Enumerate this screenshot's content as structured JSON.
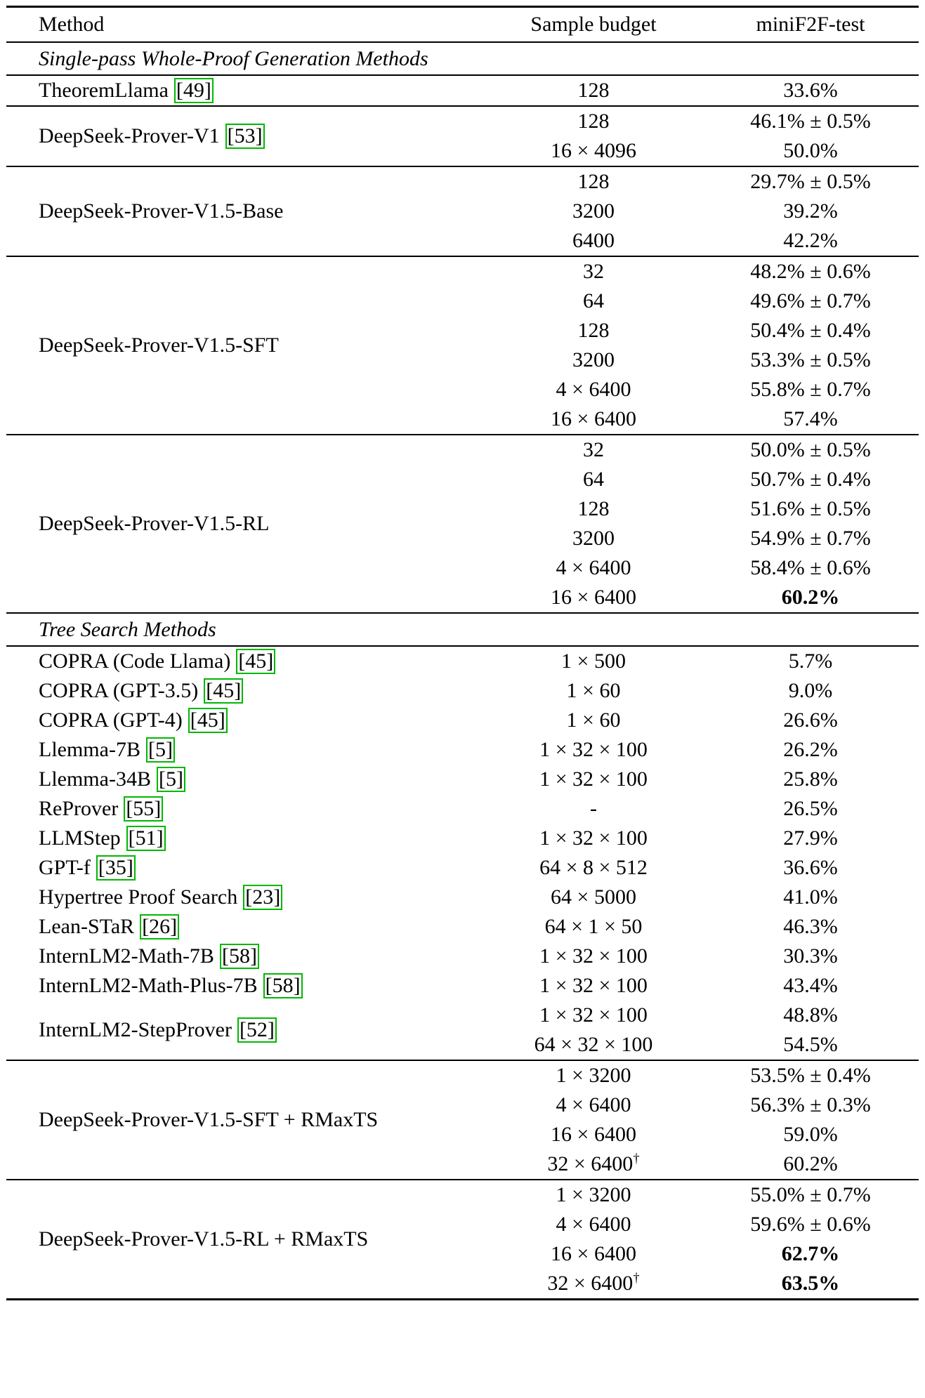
{
  "colors": {
    "citation_box": "#00b800",
    "rule": "#000000",
    "text": "#000000"
  },
  "table": {
    "headers": [
      {
        "label": "Method"
      },
      {
        "label": "Sample budget"
      },
      {
        "label": "miniF2F-test"
      }
    ],
    "sections": [
      {
        "title": "Single-pass Whole-Proof Generation Methods",
        "blocks": [
          {
            "groups": [
              {
                "method": "TheoremLlama",
                "citation": "[49]",
                "rows": [
                  {
                    "budget": "128",
                    "result": "33.6%"
                  }
                ]
              }
            ]
          },
          {
            "groups": [
              {
                "method": "DeepSeek-Prover-V1",
                "citation": "[53]",
                "rows": [
                  {
                    "budget": "128",
                    "result": "46.1% ± 0.5%"
                  },
                  {
                    "budget": "16 × 4096",
                    "result": "50.0%"
                  }
                ]
              }
            ]
          },
          {
            "groups": [
              {
                "method": "DeepSeek-Prover-V1.5-Base",
                "rows": [
                  {
                    "budget": "128",
                    "result": "29.7% ± 0.5%"
                  },
                  {
                    "budget": "3200",
                    "result": "39.2%"
                  },
                  {
                    "budget": "6400",
                    "result": "42.2%"
                  }
                ]
              }
            ]
          },
          {
            "groups": [
              {
                "method": "DeepSeek-Prover-V1.5-SFT",
                "rows": [
                  {
                    "budget": "32",
                    "result": "48.2% ± 0.6%"
                  },
                  {
                    "budget": "64",
                    "result": "49.6% ± 0.7%"
                  },
                  {
                    "budget": "128",
                    "result": "50.4% ± 0.4%"
                  },
                  {
                    "budget": "3200",
                    "result": "53.3% ± 0.5%"
                  },
                  {
                    "budget": "4 × 6400",
                    "result": "55.8% ± 0.7%"
                  },
                  {
                    "budget": "16 × 6400",
                    "result": "57.4%"
                  }
                ]
              }
            ]
          },
          {
            "groups": [
              {
                "method": "DeepSeek-Prover-V1.5-RL",
                "rows": [
                  {
                    "budget": "32",
                    "result": "50.0% ± 0.5%"
                  },
                  {
                    "budget": "64",
                    "result": "50.7% ± 0.4%"
                  },
                  {
                    "budget": "128",
                    "result": "51.6% ± 0.5%"
                  },
                  {
                    "budget": "3200",
                    "result": "54.9% ± 0.7%"
                  },
                  {
                    "budget": "4 × 6400",
                    "result": "58.4% ± 0.6%"
                  },
                  {
                    "budget": "16 × 6400",
                    "result": "60.2%",
                    "bold": true
                  }
                ]
              }
            ]
          }
        ]
      },
      {
        "title": "Tree Search Methods",
        "blocks": [
          {
            "groups": [
              {
                "method": "COPRA (Code Llama)",
                "citation": "[45]",
                "rows": [
                  {
                    "budget": "1 × 500",
                    "result": "5.7%"
                  }
                ]
              },
              {
                "method": "COPRA (GPT-3.5)",
                "citation": "[45]",
                "rows": [
                  {
                    "budget": "1 × 60",
                    "result": "9.0%"
                  }
                ]
              },
              {
                "method": "COPRA (GPT-4)",
                "citation": "[45]",
                "rows": [
                  {
                    "budget": "1 × 60",
                    "result": "26.6%"
                  }
                ]
              },
              {
                "method": "Llemma-7B",
                "citation": "[5]",
                "rows": [
                  {
                    "budget": "1 × 32 × 100",
                    "result": "26.2%"
                  }
                ]
              },
              {
                "method": "Llemma-34B",
                "citation": "[5]",
                "rows": [
                  {
                    "budget": "1 × 32 × 100",
                    "result": "25.8%"
                  }
                ]
              },
              {
                "method": "ReProver",
                "citation": "[55]",
                "rows": [
                  {
                    "budget": "-",
                    "result": "26.5%"
                  }
                ]
              },
              {
                "method": "LLMStep",
                "citation": "[51]",
                "rows": [
                  {
                    "budget": "1 × 32 × 100",
                    "result": "27.9%"
                  }
                ]
              },
              {
                "method": "GPT-f",
                "citation": "[35]",
                "rows": [
                  {
                    "budget": "64 × 8 × 512",
                    "result": "36.6%"
                  }
                ]
              },
              {
                "method": "Hypertree Proof Search",
                "citation": "[23]",
                "rows": [
                  {
                    "budget": "64 × 5000",
                    "result": "41.0%"
                  }
                ]
              },
              {
                "method": "Lean-STaR",
                "citation": "[26]",
                "rows": [
                  {
                    "budget": "64 × 1 × 50",
                    "result": "46.3%"
                  }
                ]
              },
              {
                "method": "InternLM2-Math-7B",
                "citation": "[58]",
                "rows": [
                  {
                    "budget": "1 × 32 × 100",
                    "result": "30.3%"
                  }
                ]
              },
              {
                "method": "InternLM2-Math-Plus-7B",
                "citation": "[58]",
                "rows": [
                  {
                    "budget": "1 × 32 × 100",
                    "result": "43.4%"
                  }
                ]
              },
              {
                "method": "InternLM2-StepProver",
                "citation": "[52]",
                "rows": [
                  {
                    "budget": "1 × 32 × 100",
                    "result": "48.8%"
                  },
                  {
                    "budget": "64 × 32 × 100",
                    "result": "54.5%"
                  }
                ]
              }
            ]
          },
          {
            "groups": [
              {
                "method": "DeepSeek-Prover-V1.5-SFT + RMaxTS",
                "rows": [
                  {
                    "budget": "1 × 3200",
                    "result": "53.5% ± 0.4%"
                  },
                  {
                    "budget": "4 × 6400",
                    "result": "56.3% ± 0.3%"
                  },
                  {
                    "budget": "16 × 6400",
                    "result": "59.0%"
                  },
                  {
                    "budget": "32 × 6400",
                    "budget_sup": "†",
                    "result": "60.2%"
                  }
                ]
              }
            ]
          },
          {
            "groups": [
              {
                "method": "DeepSeek-Prover-V1.5-RL + RMaxTS",
                "rows": [
                  {
                    "budget": "1 × 3200",
                    "result": "55.0% ± 0.7%"
                  },
                  {
                    "budget": "4 × 6400",
                    "result": "59.6% ± 0.6%"
                  },
                  {
                    "budget": "16 × 6400",
                    "result": "62.7%",
                    "bold": true
                  },
                  {
                    "budget": "32 × 6400",
                    "budget_sup": "†",
                    "result": "63.5%",
                    "bold": true
                  }
                ]
              }
            ]
          }
        ]
      }
    ]
  }
}
